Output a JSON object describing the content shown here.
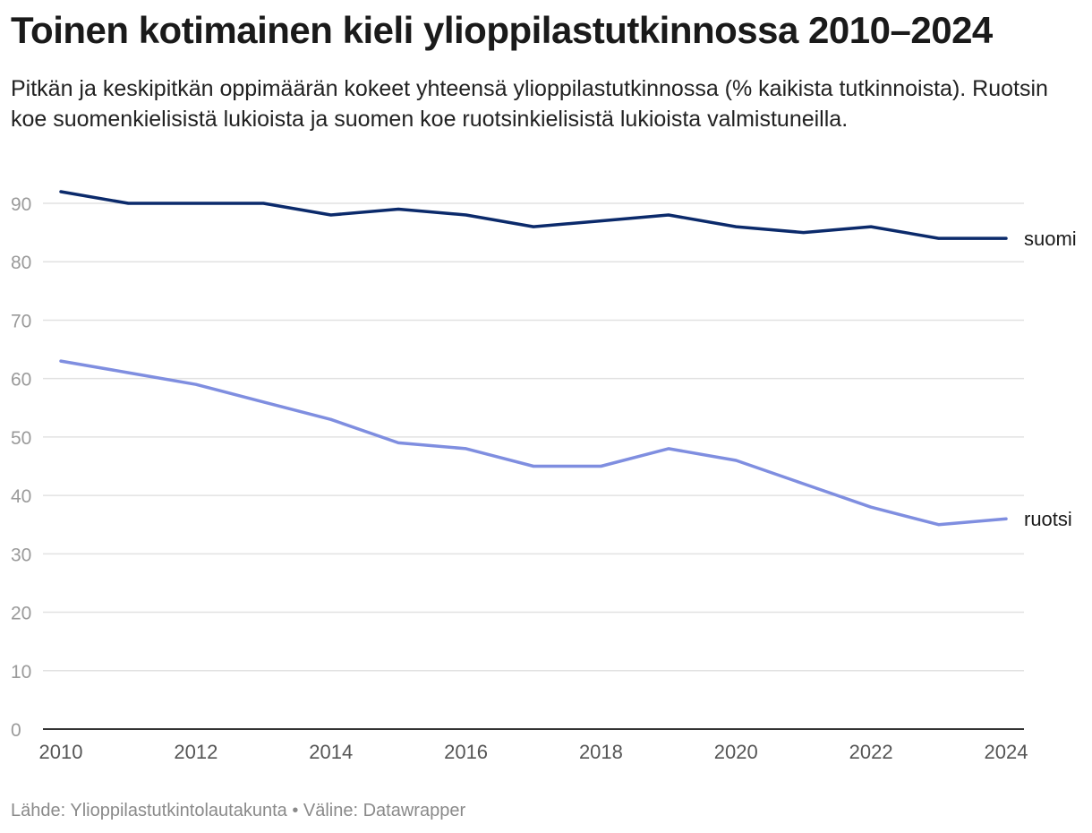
{
  "title": "Toinen kotimainen kieli ylioppilastutkinnossa 2010–2024",
  "subtitle": "Pitkän ja keskipitkän oppimäärän kokeet yhteensä ylioppilastutkinnossa (% kaikista tutkinnoista). Ruotsin koe suomenkielisistä lukioista ja suomen koe ruotsinkielisistä lukioista valmistuneilla.",
  "footer": {
    "source": "Lähde: Ylioppilastutkintolautakunta",
    "separator": "•",
    "tool": "Väline: Datawrapper"
  },
  "chart_data": {
    "type": "line",
    "x": [
      2010,
      2011,
      2012,
      2013,
      2014,
      2015,
      2016,
      2017,
      2018,
      2019,
      2020,
      2021,
      2022,
      2023,
      2024
    ],
    "xticks": [
      "2010",
      "2012",
      "2014",
      "2016",
      "2018",
      "2020",
      "2022",
      "2024"
    ],
    "yticks": [
      "0",
      "10",
      "20",
      "30",
      "40",
      "50",
      "60",
      "70",
      "80",
      "90"
    ],
    "ylim": [
      0,
      90
    ],
    "xlim": [
      2010,
      2024
    ],
    "grid": true,
    "legend": "inline labels at line ends",
    "series": [
      {
        "name": "suomi",
        "color": "#0b2a6b",
        "values": [
          92,
          90,
          90,
          90,
          88,
          89,
          88,
          86,
          87,
          88,
          86,
          85,
          86,
          84,
          84
        ]
      },
      {
        "name": "ruotsi",
        "color": "#7f8ee0",
        "values": [
          63,
          61,
          59,
          56,
          53,
          49,
          48,
          45,
          45,
          48,
          46,
          42,
          38,
          35,
          36
        ]
      }
    ]
  }
}
